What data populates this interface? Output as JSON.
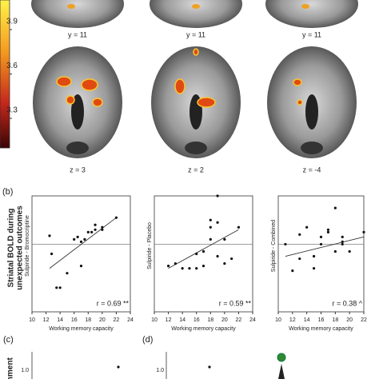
{
  "brain_panel": {
    "colorbar_lim": [
      3.1,
      4.1
    ],
    "colorbar_ticks": [
      3.9,
      3.6,
      3.3
    ],
    "coronal_labels": [
      "y = 11",
      "y = 11",
      "y = 11"
    ],
    "axial_labels": [
      "z = 3",
      "z = 2",
      "z = -4"
    ]
  },
  "panel_b": {
    "label": "(b)",
    "ylabel_lines": [
      "Striatal BOLD during",
      "unexpected outcomes"
    ]
  },
  "chart_data": [
    {
      "type": "scatter",
      "ylabel": "Sulpiride - Bromocriptine",
      "xlabel": "Working memory capacity",
      "annotation": "r = 0.69 **",
      "x": [
        12.5,
        12.8,
        13.5,
        14,
        15,
        16,
        16.5,
        17,
        17,
        17.5,
        18,
        18.5,
        19,
        19,
        20,
        20,
        22
      ],
      "y": [
        0.35,
        -0.4,
        -1.8,
        -1.8,
        -1.2,
        0.2,
        0.3,
        -0.9,
        0.1,
        0.2,
        0.5,
        0.5,
        0.8,
        0.6,
        0.6,
        0.7,
        1.1
      ],
      "fit": {
        "x": [
          12.5,
          22
        ],
        "y": [
          -1.0,
          1.1
        ]
      },
      "hline": 0,
      "xlim": [
        10,
        24
      ],
      "xticks": [
        10,
        12,
        14,
        16,
        18,
        20,
        22,
        24
      ],
      "ylim": [
        -2.8,
        2.0
      ],
      "color": "#111"
    },
    {
      "type": "scatter",
      "ylabel": "Sulpiride - Placebo",
      "xlabel": "Working memory capacity",
      "annotation": "r = 0.59 **",
      "x": [
        12,
        13,
        14,
        15,
        16,
        16,
        17,
        17,
        18,
        18,
        18,
        19,
        19,
        19,
        20,
        20,
        21,
        22
      ],
      "y": [
        -0.9,
        -0.8,
        -1.0,
        -1.0,
        -0.4,
        -1.0,
        -0.3,
        -0.9,
        0.7,
        1.0,
        0.2,
        0.9,
        2.0,
        -0.5,
        -0.8,
        0.2,
        -0.6,
        0.7
      ],
      "fit": {
        "x": [
          12,
          22
        ],
        "y": [
          -1.0,
          0.6
        ]
      },
      "hline": 0,
      "xlim": [
        10,
        24
      ],
      "xticks": [
        10,
        12,
        14,
        16,
        18,
        20,
        22,
        24
      ],
      "ylim": [
        -2.8,
        2.0
      ],
      "color": "#111"
    },
    {
      "type": "scatter",
      "ylabel": "Sulpiride - Combined",
      "xlabel": "Working memory capacity",
      "annotation": "r = 0.38 ^",
      "x": [
        11,
        12,
        13,
        13,
        14,
        15,
        15,
        16,
        16,
        17,
        17,
        18,
        18,
        19,
        19,
        19,
        20,
        22
      ],
      "y": [
        0,
        -1.1,
        -0.6,
        0.4,
        0.7,
        -0.5,
        -1.0,
        0,
        0.3,
        0.5,
        0.6,
        1.5,
        -0.3,
        0.3,
        0.0,
        0.1,
        -0.3,
        0.5
      ],
      "fit": {
        "x": [
          11,
          22
        ],
        "y": [
          -0.5,
          0.3
        ]
      },
      "hline": 0,
      "xlim": [
        10,
        22
      ],
      "xticks": [
        10,
        12,
        14,
        16,
        18,
        20,
        22
      ],
      "ylim": [
        -2.8,
        2.0
      ],
      "color": "#111"
    }
  ],
  "panel_c": {
    "label": "(c)",
    "ylabel": "shment",
    "ytick": "1.0"
  },
  "panel_d": {
    "label": "(d)",
    "ytick": "1.0"
  }
}
